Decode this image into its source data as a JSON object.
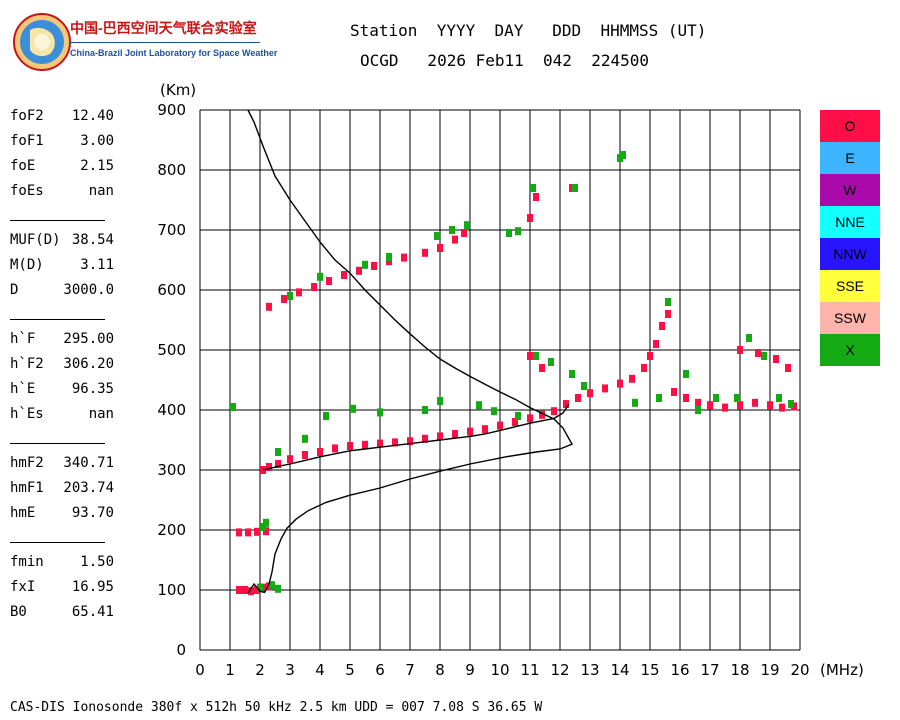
{
  "header": {
    "org_cn": "中国-巴西空间天气联合实验室",
    "org_en": "China-Brazil Joint Laboratory for Space Weather",
    "line1": "Station  YYYY  DAY   DDD  HHMMSS (UT)",
    "line2": "OCGD   2026 Feb11  042  224500"
  },
  "params": [
    {
      "label": "foF2",
      "value": "12.40"
    },
    {
      "label": "foF1",
      "value": "3.00"
    },
    {
      "label": "foE",
      "value": "2.15"
    },
    {
      "label": "foEs",
      "value": "nan"
    },
    {
      "sep": true
    },
    {
      "label": "MUF(D)",
      "value": "38.54"
    },
    {
      "label": "M(D)",
      "value": "3.11"
    },
    {
      "label": "D",
      "value": "3000.0"
    },
    {
      "sep": true
    },
    {
      "label": "h`F",
      "value": "295.00"
    },
    {
      "label": "h`F2",
      "value": "306.20"
    },
    {
      "label": "h`E",
      "value": "96.35"
    },
    {
      "label": "h`Es",
      "value": "nan"
    },
    {
      "sep": true
    },
    {
      "label": "hmF2",
      "value": "340.71"
    },
    {
      "label": "hmF1",
      "value": "203.74"
    },
    {
      "label": "hmE",
      "value": "93.70"
    },
    {
      "sep": true
    },
    {
      "label": "fmin",
      "value": "1.50"
    },
    {
      "label": "fxI",
      "value": "16.95"
    },
    {
      "label": "B0",
      "value": "65.41"
    }
  ],
  "legend": [
    {
      "label": "O",
      "color": "#ff0f46"
    },
    {
      "label": "E",
      "color": "#3cb4ff"
    },
    {
      "label": "W",
      "color": "#aa0aaa"
    },
    {
      "label": "NNE",
      "color": "#14ffff"
    },
    {
      "label": "NNW",
      "color": "#2814ff"
    },
    {
      "label": "SSE",
      "color": "#ffff3c"
    },
    {
      "label": "SSW",
      "color": "#ffb4aa"
    },
    {
      "label": "X",
      "color": "#14aa14"
    }
  ],
  "footer": "CAS-DIS Ionosonde 380f x 512h 50 kHz 2.5 km UDD = 007 7.08 S 36.65 W",
  "chart_data": {
    "type": "scatter",
    "xlabel": "(MHz)",
    "ylabel": "(Km)",
    "xlim": [
      0,
      20
    ],
    "ylim": [
      0,
      900
    ],
    "xticks": [
      0,
      1,
      2,
      3,
      4,
      5,
      6,
      7,
      8,
      9,
      10,
      11,
      12,
      13,
      14,
      15,
      16,
      17,
      18,
      19,
      20
    ],
    "yticks": [
      0,
      100,
      200,
      300,
      400,
      500,
      600,
      700,
      800,
      900
    ],
    "grid": true,
    "traces": [
      {
        "name": "O",
        "color": "#ff0f46",
        "points": [
          [
            1.3,
            100
          ],
          [
            1.5,
            100
          ],
          [
            1.7,
            98
          ],
          [
            1.9,
            100
          ],
          [
            2.1,
            104
          ],
          [
            2.3,
            106
          ],
          [
            1.3,
            196
          ],
          [
            1.6,
            196
          ],
          [
            1.9,
            197
          ],
          [
            2.2,
            198
          ],
          [
            2.1,
            300
          ],
          [
            2.3,
            305
          ],
          [
            2.6,
            310
          ],
          [
            3.0,
            318
          ],
          [
            3.5,
            325
          ],
          [
            4.0,
            330
          ],
          [
            4.5,
            336
          ],
          [
            5.0,
            340
          ],
          [
            5.5,
            342
          ],
          [
            6.0,
            344
          ],
          [
            6.5,
            346
          ],
          [
            7.0,
            348
          ],
          [
            7.5,
            352
          ],
          [
            8.0,
            356
          ],
          [
            8.5,
            360
          ],
          [
            9.0,
            364
          ],
          [
            9.5,
            368
          ],
          [
            10.0,
            374
          ],
          [
            10.5,
            380
          ],
          [
            11.0,
            386
          ],
          [
            11.4,
            392
          ],
          [
            11.8,
            398
          ],
          [
            12.2,
            410
          ],
          [
            12.6,
            420
          ],
          [
            13.0,
            428
          ],
          [
            13.5,
            436
          ],
          [
            14.0,
            444
          ],
          [
            14.4,
            452
          ],
          [
            14.8,
            470
          ],
          [
            15.0,
            490
          ],
          [
            15.2,
            510
          ],
          [
            15.4,
            540
          ],
          [
            15.6,
            560
          ],
          [
            2.3,
            572
          ],
          [
            2.8,
            585
          ],
          [
            3.3,
            596
          ],
          [
            3.8,
            605
          ],
          [
            4.3,
            615
          ],
          [
            4.8,
            625
          ],
          [
            5.3,
            632
          ],
          [
            5.8,
            640
          ],
          [
            6.3,
            648
          ],
          [
            6.8,
            654
          ],
          [
            7.5,
            662
          ],
          [
            8.0,
            670
          ],
          [
            8.5,
            684
          ],
          [
            8.8,
            695
          ],
          [
            11.0,
            490
          ],
          [
            11.4,
            470
          ],
          [
            11.0,
            720
          ],
          [
            11.2,
            755
          ],
          [
            12.4,
            770
          ],
          [
            15.8,
            430
          ],
          [
            16.2,
            420
          ],
          [
            16.6,
            412
          ],
          [
            17.0,
            408
          ],
          [
            17.5,
            404
          ],
          [
            18.0,
            408
          ],
          [
            18.5,
            412
          ],
          [
            19.0,
            408
          ],
          [
            19.4,
            404
          ],
          [
            19.8,
            406
          ],
          [
            18.0,
            500
          ],
          [
            18.6,
            495
          ],
          [
            19.2,
            485
          ],
          [
            19.6,
            470
          ]
        ]
      },
      {
        "name": "X",
        "color": "#14aa14",
        "points": [
          [
            1.1,
            405
          ],
          [
            2.0,
            104
          ],
          [
            2.4,
            108
          ],
          [
            2.6,
            102
          ],
          [
            2.2,
            212
          ],
          [
            2.1,
            205
          ],
          [
            2.6,
            330
          ],
          [
            3.5,
            352
          ],
          [
            4.2,
            390
          ],
          [
            5.1,
            402
          ],
          [
            6.0,
            396
          ],
          [
            7.5,
            400
          ],
          [
            8.0,
            415
          ],
          [
            9.3,
            408
          ],
          [
            9.8,
            398
          ],
          [
            10.6,
            390
          ],
          [
            3.0,
            590
          ],
          [
            4.0,
            622
          ],
          [
            5.5,
            642
          ],
          [
            6.3,
            655
          ],
          [
            7.9,
            690
          ],
          [
            8.4,
            700
          ],
          [
            8.9,
            708
          ],
          [
            10.3,
            695
          ],
          [
            10.6,
            698
          ],
          [
            11.1,
            770
          ],
          [
            12.5,
            770
          ],
          [
            14.0,
            820
          ],
          [
            14.1,
            825
          ],
          [
            11.2,
            490
          ],
          [
            11.7,
            480
          ],
          [
            12.4,
            460
          ],
          [
            12.8,
            440
          ],
          [
            14.5,
            412
          ],
          [
            15.3,
            420
          ],
          [
            15.6,
            580
          ],
          [
            16.2,
            460
          ],
          [
            16.6,
            400
          ],
          [
            17.2,
            420
          ],
          [
            17.9,
            420
          ],
          [
            18.3,
            520
          ],
          [
            18.8,
            490
          ],
          [
            19.3,
            420
          ],
          [
            19.7,
            410
          ]
        ]
      },
      {
        "name": "profile",
        "color": "#000000",
        "points": [
          [
            1.6,
            900
          ],
          [
            1.8,
            880
          ],
          [
            2.1,
            840
          ],
          [
            2.5,
            790
          ],
          [
            3.0,
            750
          ],
          [
            3.5,
            715
          ],
          [
            4.0,
            680
          ],
          [
            4.5,
            650
          ],
          [
            5.0,
            628
          ],
          [
            5.5,
            600
          ],
          [
            6.0,
            575
          ],
          [
            6.5,
            550
          ],
          [
            7.0,
            527
          ],
          [
            7.5,
            505
          ],
          [
            8.0,
            485
          ],
          [
            8.5,
            470
          ],
          [
            9.0,
            456
          ],
          [
            9.5,
            443
          ],
          [
            10.0,
            430
          ],
          [
            10.5,
            418
          ],
          [
            11.0,
            404
          ],
          [
            11.5,
            392
          ],
          [
            11.8,
            385
          ],
          [
            12.1,
            370
          ],
          [
            12.3,
            352
          ],
          [
            12.4,
            343
          ],
          [
            12.0,
            335
          ],
          [
            11.2,
            330
          ],
          [
            10.2,
            322
          ],
          [
            9.0,
            310
          ],
          [
            8.0,
            298
          ],
          [
            7.0,
            285
          ],
          [
            6.0,
            270
          ],
          [
            5.0,
            258
          ],
          [
            4.2,
            246
          ],
          [
            3.6,
            232
          ],
          [
            3.2,
            218
          ],
          [
            2.9,
            203
          ],
          [
            2.7,
            185
          ],
          [
            2.5,
            160
          ],
          [
            2.4,
            130
          ],
          [
            2.3,
            110
          ],
          [
            2.15,
            96
          ],
          [
            2.0,
            98
          ],
          [
            1.8,
            110
          ],
          [
            1.6,
            95
          ]
        ]
      },
      {
        "name": "virtual",
        "color": "#000000",
        "points": [
          [
            2.1,
            300
          ],
          [
            2.6,
            306
          ],
          [
            3.0,
            310
          ],
          [
            3.5,
            316
          ],
          [
            4.0,
            322
          ],
          [
            4.5,
            327
          ],
          [
            5.0,
            332
          ],
          [
            5.5,
            335
          ],
          [
            6.0,
            338
          ],
          [
            6.5,
            341
          ],
          [
            7.0,
            344
          ],
          [
            7.5,
            347
          ],
          [
            8.0,
            350
          ],
          [
            8.5,
            353
          ],
          [
            9.0,
            356
          ],
          [
            9.5,
            360
          ],
          [
            10.0,
            366
          ],
          [
            10.5,
            372
          ],
          [
            11.0,
            378
          ],
          [
            11.4,
            382
          ],
          [
            11.8,
            386
          ],
          [
            12.1,
            395
          ],
          [
            12.3,
            410
          ]
        ]
      }
    ]
  }
}
